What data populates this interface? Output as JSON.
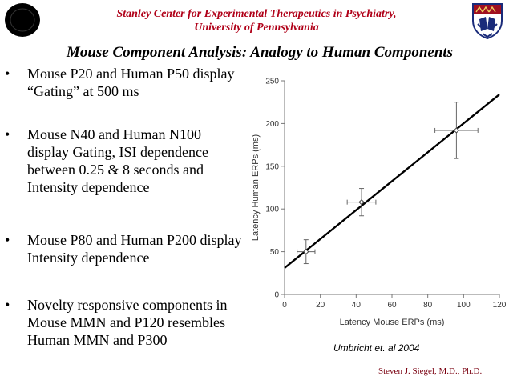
{
  "header": {
    "line1": "Stanley Center for Experimental Therapeutics in Psychiatry,",
    "line2": "University of Pennsylvania"
  },
  "title": "Mouse Component Analysis: Analogy to Human Components",
  "bullets": [
    "Mouse P20 and Human P50 display “Gating” at 500 ms",
    "Mouse N40 and Human N100 display Gating, ISI dependence between 0.25 & 8 seconds and Intensity dependence",
    "Mouse P80 and Human P200 display Intensity dependence",
    "Novelty responsive components in Mouse MMN and P120 resembles Human MMN and P300"
  ],
  "bullet_symbol": "•",
  "chart_data": {
    "type": "scatter",
    "xlabel": "Latency Mouse ERPs (ms)",
    "ylabel": "Latency Human ERPs (ms)",
    "xlim": [
      0,
      120
    ],
    "ylim": [
      0,
      250
    ],
    "xticks": [
      0,
      20,
      40,
      60,
      80,
      100,
      120
    ],
    "yticks": [
      0,
      50,
      100,
      150,
      200,
      250
    ],
    "points": [
      {
        "x": 12,
        "y": 50,
        "xerr": 5,
        "yerr": 14
      },
      {
        "x": 43,
        "y": 108,
        "xerr": 8,
        "yerr": 16
      },
      {
        "x": 96,
        "y": 192,
        "xerr": 12,
        "yerr": 33
      }
    ],
    "fit_line": {
      "x": [
        0,
        120
      ],
      "y": [
        31,
        234
      ]
    },
    "grid": false,
    "line_color": "#000000"
  },
  "citation": "Umbricht et. al 2004",
  "author": "Steven J. Siegel, M.D., Ph.D."
}
